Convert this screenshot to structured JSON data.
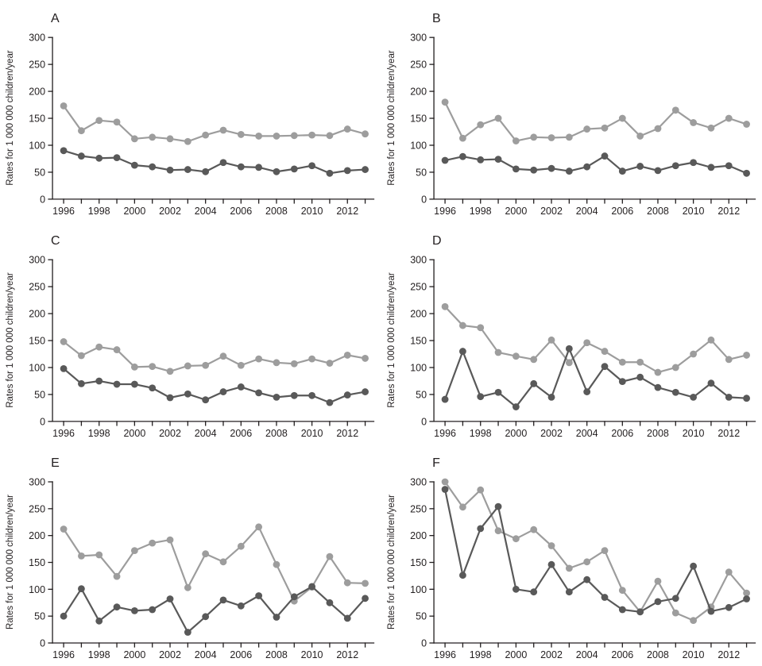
{
  "figure": {
    "ylabel": "Rates for 1 000 000 children/year",
    "ylim": [
      0,
      300
    ],
    "y_ticks": [
      0,
      50,
      100,
      150,
      200,
      250,
      300
    ],
    "x_tick_label_years": [
      1996,
      1998,
      2000,
      2002,
      2004,
      2006,
      2008,
      2010,
      2012
    ],
    "grid": "off",
    "legend": "none",
    "colors": {
      "series_light": "#9d9d9d",
      "series_dark": "#595959",
      "axis": "#231f20"
    }
  },
  "chart_data": [
    {
      "type": "line",
      "panel": "A",
      "ylabel": "Rates for 1 000 000 children/year",
      "ylim": [
        0,
        300
      ],
      "x": [
        1996,
        1997,
        1998,
        1999,
        2000,
        2001,
        2002,
        2003,
        2004,
        2005,
        2006,
        2007,
        2008,
        2009,
        2010,
        2011,
        2012,
        2013
      ],
      "series": [
        {
          "name": "light-grey series",
          "color_key": "series_light",
          "values": [
            173,
            127,
            146,
            143,
            112,
            115,
            112,
            107,
            119,
            128,
            120,
            117,
            117,
            118,
            119,
            118,
            130,
            121
          ]
        },
        {
          "name": "dark-grey series",
          "color_key": "series_dark",
          "values": [
            90,
            80,
            76,
            77,
            63,
            60,
            54,
            55,
            51,
            68,
            60,
            59,
            51,
            56,
            62,
            48,
            53,
            55
          ]
        }
      ]
    },
    {
      "type": "line",
      "panel": "B",
      "ylabel": "Rates for 1 000 000 children/year",
      "ylim": [
        0,
        300
      ],
      "x": [
        1996,
        1997,
        1998,
        1999,
        2000,
        2001,
        2002,
        2003,
        2004,
        2005,
        2006,
        2007,
        2008,
        2009,
        2010,
        2011,
        2012,
        2013
      ],
      "series": [
        {
          "name": "light-grey series",
          "color_key": "series_light",
          "values": [
            180,
            113,
            138,
            150,
            108,
            115,
            114,
            115,
            130,
            132,
            150,
            117,
            131,
            165,
            142,
            132,
            150,
            139
          ]
        },
        {
          "name": "dark-grey series",
          "color_key": "series_dark",
          "values": [
            72,
            79,
            73,
            74,
            56,
            54,
            57,
            52,
            60,
            80,
            52,
            61,
            53,
            62,
            68,
            59,
            62,
            48
          ]
        }
      ]
    },
    {
      "type": "line",
      "panel": "C",
      "ylabel": "Rates for 1 000 000 children/year",
      "ylim": [
        0,
        300
      ],
      "x": [
        1996,
        1997,
        1998,
        1999,
        2000,
        2001,
        2002,
        2003,
        2004,
        2005,
        2006,
        2007,
        2008,
        2009,
        2010,
        2011,
        2012,
        2013
      ],
      "series": [
        {
          "name": "light-grey series",
          "color_key": "series_light",
          "values": [
            148,
            122,
            138,
            133,
            101,
            102,
            93,
            103,
            104,
            121,
            104,
            116,
            109,
            107,
            116,
            108,
            123,
            117
          ]
        },
        {
          "name": "dark-grey series",
          "color_key": "series_dark",
          "values": [
            98,
            70,
            75,
            69,
            69,
            62,
            44,
            51,
            40,
            55,
            64,
            53,
            45,
            48,
            48,
            35,
            49,
            55
          ]
        }
      ]
    },
    {
      "type": "line",
      "panel": "D",
      "ylabel": "Rates for 1 000 000 children/year",
      "ylim": [
        0,
        300
      ],
      "x": [
        1996,
        1997,
        1998,
        1999,
        2000,
        2001,
        2002,
        2003,
        2004,
        2005,
        2006,
        2007,
        2008,
        2009,
        2010,
        2011,
        2012,
        2013
      ],
      "series": [
        {
          "name": "light-grey series",
          "color_key": "series_light",
          "values": [
            213,
            178,
            174,
            128,
            121,
            115,
            151,
            109,
            146,
            130,
            110,
            110,
            91,
            100,
            125,
            151,
            115,
            123
          ]
        },
        {
          "name": "dark-grey series",
          "color_key": "series_dark",
          "values": [
            41,
            130,
            46,
            54,
            27,
            70,
            45,
            135,
            55,
            102,
            74,
            82,
            63,
            54,
            45,
            71,
            45,
            43
          ]
        }
      ]
    },
    {
      "type": "line",
      "panel": "E",
      "ylabel": "Rates for 1 000 000 children/year",
      "ylim": [
        0,
        300
      ],
      "x": [
        1996,
        1997,
        1998,
        1999,
        2000,
        2001,
        2002,
        2003,
        2004,
        2005,
        2006,
        2007,
        2008,
        2009,
        2010,
        2011,
        2012,
        2013
      ],
      "series": [
        {
          "name": "light-grey series",
          "color_key": "series_light",
          "values": [
            212,
            162,
            164,
            124,
            172,
            186,
            192,
            103,
            166,
            151,
            180,
            216,
            146,
            78,
            104,
            161,
            112,
            111
          ]
        },
        {
          "name": "dark-grey series",
          "color_key": "series_dark",
          "values": [
            50,
            101,
            41,
            67,
            60,
            62,
            82,
            20,
            49,
            80,
            69,
            88,
            48,
            86,
            105,
            75,
            46,
            83
          ]
        }
      ]
    },
    {
      "type": "line",
      "panel": "F",
      "ylabel": "Rates for 1 000 000 children/year",
      "ylim": [
        0,
        300
      ],
      "x": [
        1996,
        1997,
        1998,
        1999,
        2000,
        2001,
        2002,
        2003,
        2004,
        2005,
        2006,
        2007,
        2008,
        2009,
        2010,
        2011,
        2012,
        2013
      ],
      "series": [
        {
          "name": "light-grey series",
          "color_key": "series_light",
          "values": [
            300,
            253,
            285,
            209,
            194,
            211,
            181,
            139,
            151,
            172,
            98,
            58,
            115,
            56,
            42,
            67,
            132,
            93
          ]
        },
        {
          "name": "dark-grey series",
          "color_key": "series_dark",
          "values": [
            286,
            126,
            213,
            254,
            100,
            95,
            146,
            95,
            118,
            85,
            62,
            58,
            77,
            83,
            143,
            59,
            66,
            82
          ]
        }
      ]
    }
  ]
}
